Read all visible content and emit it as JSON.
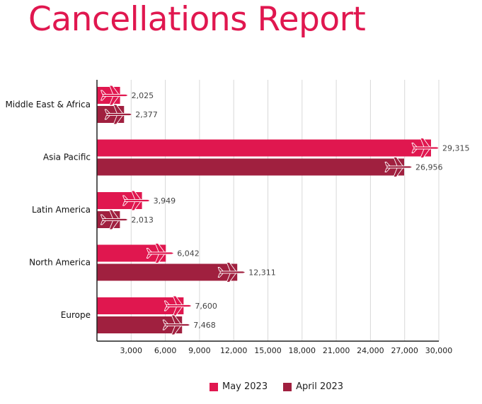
{
  "title": "Cancellations Report",
  "colors": {
    "title": "#e0174f",
    "may": "#e0174f",
    "april": "#a0203f",
    "grid": "#d8d8d8",
    "axis": "#222222"
  },
  "chart_data": {
    "type": "bar",
    "orientation": "horizontal",
    "categories": [
      "Middle East & Africa",
      "Asia Pacific",
      "Latin America",
      "North America",
      "Europe"
    ],
    "series": [
      {
        "name": "May 2023",
        "values": [
          2025,
          29315,
          3949,
          6042,
          7600
        ]
      },
      {
        "name": "April 2023",
        "values": [
          2377,
          26956,
          2013,
          12311,
          7468
        ]
      }
    ],
    "value_labels": [
      [
        "2,025",
        "29,315",
        "3,949",
        "6,042",
        "7,600"
      ],
      [
        "2,377",
        "26,956",
        "2,013",
        "12,311",
        "7,468"
      ]
    ],
    "xlim": [
      0,
      30000
    ],
    "xticks": [
      3000,
      6000,
      9000,
      12000,
      15000,
      18000,
      21000,
      24000,
      27000,
      30000
    ],
    "xtick_labels": [
      "3,000",
      "6,000",
      "9,000",
      "12,000",
      "15,000",
      "18,000",
      "21,000",
      "24,000",
      "27,000",
      "30,000"
    ],
    "grid": true,
    "legend": "bottom-center",
    "bar_marker_icon": "airplane-icon"
  }
}
